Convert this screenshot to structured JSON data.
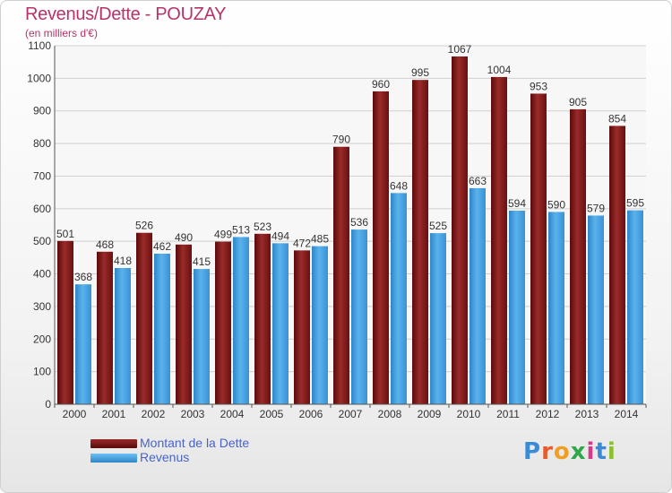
{
  "title": "Revenus/Dette - POUZAY",
  "subtitle": "(en milliers d'€)",
  "brand": [
    "P",
    "r",
    "o",
    "x",
    "i",
    "t",
    "i"
  ],
  "brand_colors": [
    "#3a8ad6",
    "#e85a2a",
    "#f0a020",
    "#2ea84a",
    "#d63a8a",
    "#3a8ad6",
    "#8ac02a"
  ],
  "legend": [
    {
      "label": "Montant de la Dette",
      "color": "#7a1a1a"
    },
    {
      "label": "Revenus",
      "color": "#4aa3e0"
    }
  ],
  "chart_data": {
    "type": "bar",
    "title": "Revenus/Dette - POUZAY",
    "subtitle": "(en milliers d'€)",
    "categories": [
      "2000",
      "2001",
      "2002",
      "2003",
      "2004",
      "2005",
      "2006",
      "2007",
      "2008",
      "2009",
      "2010",
      "2011",
      "2012",
      "2013",
      "2014"
    ],
    "series": [
      {
        "name": "Montant de la Dette",
        "color": "#7a1a1a",
        "values": [
          501,
          468,
          526,
          490,
          499,
          523,
          472,
          790,
          960,
          995,
          1067,
          1004,
          953,
          905,
          854
        ]
      },
      {
        "name": "Revenus",
        "color": "#4aa3e0",
        "values": [
          368,
          418,
          462,
          415,
          513,
          494,
          485,
          536,
          648,
          525,
          663,
          594,
          590,
          579,
          595
        ]
      }
    ],
    "yticks": [
      0,
      100,
      200,
      300,
      400,
      500,
      600,
      700,
      800,
      900,
      1000,
      1100
    ],
    "ylim": [
      0,
      1100
    ],
    "grid": true,
    "legend_position": "bottom-left"
  }
}
